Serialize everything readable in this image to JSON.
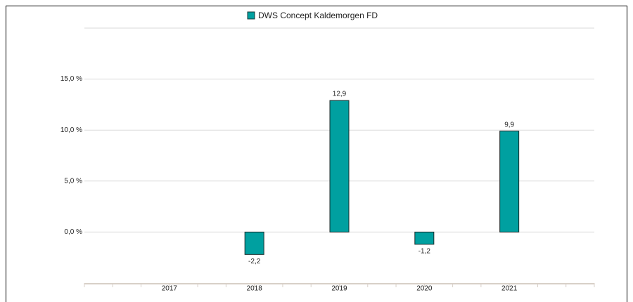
{
  "chart_data": {
    "type": "bar",
    "series": [
      {
        "name": "DWS Concept Kaldemorgen  FD",
        "color": "#00a0a0",
        "values": [
          null,
          -2.2,
          12.9,
          -1.2,
          9.9
        ],
        "value_labels": [
          null,
          "-2,2",
          "12,9",
          "-1,2",
          "9,9"
        ]
      }
    ],
    "categories": [
      "2017",
      "2018",
      "2019",
      "2020",
      "2021"
    ],
    "ylim": [
      -5,
      20
    ],
    "yticks": [
      {
        "value": 0,
        "label": "0,0 %"
      },
      {
        "value": 5,
        "label": "5,0 %"
      },
      {
        "value": 10,
        "label": "10,0 %"
      },
      {
        "value": 15,
        "label": "15,0 %"
      }
    ],
    "grid": true,
    "legend": "top"
  }
}
